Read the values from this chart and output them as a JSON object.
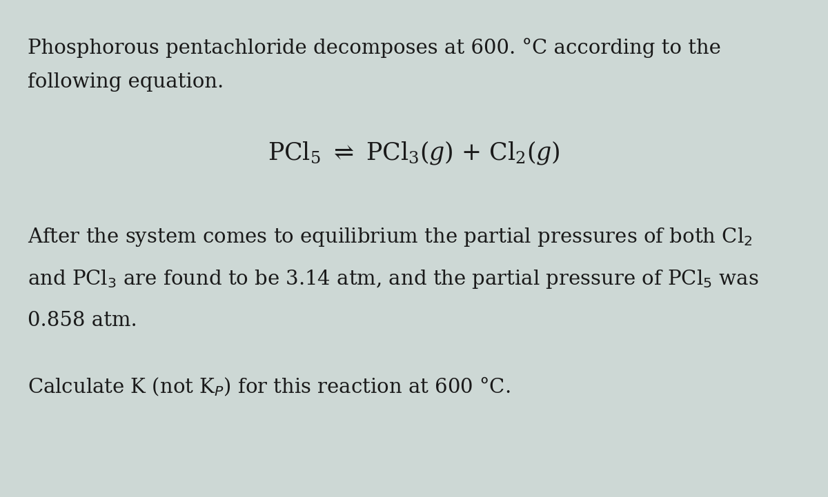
{
  "bg_color": "#cdd8d5",
  "text_color": "#1a1a1a",
  "line1": "Phosphorous pentachloride decomposes at 600. °C according to the",
  "line2": "following equation.",
  "equation": "PCl$_5$ $\\rightleftharpoons$ PCl$_3$($g$) + Cl$_2$($g$)",
  "para2_line1": "After the system comes to equilibrium the partial pressures of both Cl$_2$",
  "para2_line2": "and PCl$_3$ are found to be 3.14 atm, and the partial pressure of PCl$_5$ was",
  "para2_line3": "0.858 atm.",
  "last_line": "Calculate K (not K$_P$) for this reaction at 600 °C.",
  "main_fontsize": 21,
  "eq_fontsize": 25,
  "fig_width": 12.0,
  "fig_height": 7.21
}
